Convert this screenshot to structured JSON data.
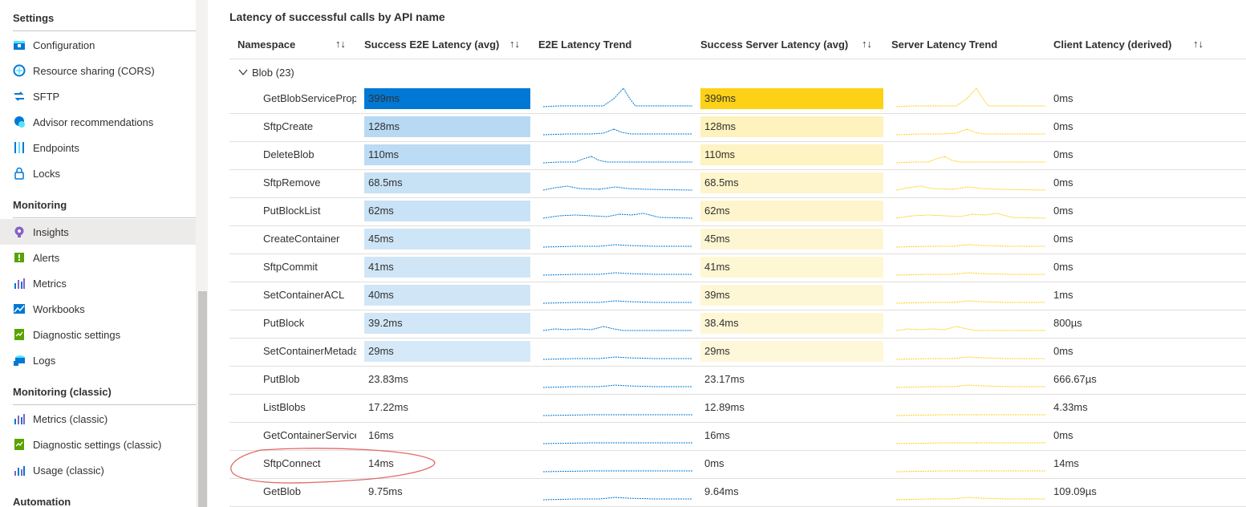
{
  "sidebar": {
    "sections": [
      {
        "title": "Settings",
        "items": [
          {
            "label": "Configuration",
            "icon": "configuration-icon"
          },
          {
            "label": "Resource sharing (CORS)",
            "icon": "cors-icon"
          },
          {
            "label": "SFTP",
            "icon": "sftp-icon"
          },
          {
            "label": "Advisor recommendations",
            "icon": "advisor-icon"
          },
          {
            "label": "Endpoints",
            "icon": "endpoints-icon"
          },
          {
            "label": "Locks",
            "icon": "lock-icon"
          }
        ]
      },
      {
        "title": "Monitoring",
        "items": [
          {
            "label": "Insights",
            "icon": "insights-icon",
            "selected": true
          },
          {
            "label": "Alerts",
            "icon": "alerts-icon"
          },
          {
            "label": "Metrics",
            "icon": "metrics-icon"
          },
          {
            "label": "Workbooks",
            "icon": "workbooks-icon"
          },
          {
            "label": "Diagnostic settings",
            "icon": "diagnostic-settings-icon"
          },
          {
            "label": "Logs",
            "icon": "logs-icon"
          }
        ]
      },
      {
        "title": "Monitoring (classic)",
        "items": [
          {
            "label": "Metrics (classic)",
            "icon": "metrics-icon"
          },
          {
            "label": "Diagnostic settings (classic)",
            "icon": "diagnostic-settings-icon"
          },
          {
            "label": "Usage (classic)",
            "icon": "usage-icon"
          }
        ]
      },
      {
        "title": "Automation",
        "items": []
      }
    ]
  },
  "grid": {
    "title": "Latency of successful calls by API name",
    "columns": {
      "namespace": "Namespace",
      "e2e_avg": "Success E2E Latency (avg)",
      "e2e_trend": "E2E Latency Trend",
      "server_avg": "Success Server Latency (avg)",
      "server_trend": "Server Latency Trend",
      "client": "Client Latency (derived)"
    },
    "sort_glyph": "↑↓",
    "group_label": "Blob (23)",
    "colors": {
      "e2e_bar": "#0078d4",
      "server_bar": "#fcd116",
      "e2e_spark": "#0078d4",
      "server_spark": "#fcd116",
      "annotation": "#e06666"
    },
    "rows": [
      {
        "name": "GetBlobServiceProperties",
        "e2e": "399ms",
        "e2e_value": 399,
        "server": "399ms",
        "server_value": 399,
        "client": "0ms",
        "spark": "peak_late"
      },
      {
        "name": "SftpCreate",
        "e2e": "128ms",
        "e2e_value": 128,
        "server": "128ms",
        "server_value": 128,
        "client": "0ms",
        "spark": "small_peak_late"
      },
      {
        "name": "DeleteBlob",
        "e2e": "110ms",
        "e2e_value": 110,
        "server": "110ms",
        "server_value": 110,
        "client": "0ms",
        "spark": "small_peak_mid"
      },
      {
        "name": "SftpRemove",
        "e2e": "68.5ms",
        "e2e_value": 68.5,
        "server": "68.5ms",
        "server_value": 68.5,
        "client": "0ms",
        "spark": "two_bumps"
      },
      {
        "name": "PutBlockList",
        "e2e": "62ms",
        "e2e_value": 62,
        "server": "62ms",
        "server_value": 62,
        "client": "0ms",
        "spark": "wavy"
      },
      {
        "name": "CreateContainer",
        "e2e": "45ms",
        "e2e_value": 45,
        "server": "45ms",
        "server_value": 45,
        "client": "0ms",
        "spark": "tiny_bump"
      },
      {
        "name": "SftpCommit",
        "e2e": "41ms",
        "e2e_value": 41,
        "server": "41ms",
        "server_value": 41,
        "client": "0ms",
        "spark": "tiny_bump"
      },
      {
        "name": "SetContainerACL",
        "e2e": "40ms",
        "e2e_value": 40,
        "server": "39ms",
        "server_value": 39,
        "client": "1ms",
        "spark": "tiny_bump"
      },
      {
        "name": "PutBlock",
        "e2e": "39.2ms",
        "e2e_value": 39.2,
        "server": "38.4ms",
        "server_value": 38.4,
        "client": "800µs",
        "spark": "jagged"
      },
      {
        "name": "SetContainerMetadata",
        "e2e": "29ms",
        "e2e_value": 29,
        "server": "29ms",
        "server_value": 29,
        "client": "0ms",
        "spark": "tiny_bump"
      },
      {
        "name": "PutBlob",
        "e2e": "23.83ms",
        "e2e_value": 23.83,
        "server": "23.17ms",
        "server_value": 23.17,
        "client": "666.67µs",
        "spark": "tiny_bump"
      },
      {
        "name": "ListBlobs",
        "e2e": "17.22ms",
        "e2e_value": 17.22,
        "server": "12.89ms",
        "server_value": 12.89,
        "client": "4.33ms",
        "spark": "flat"
      },
      {
        "name": "GetContainerServiceMetadata",
        "e2e": "16ms",
        "e2e_value": 16,
        "server": "16ms",
        "server_value": 16,
        "client": "0ms",
        "spark": "flat"
      },
      {
        "name": "SftpConnect",
        "e2e": "14ms",
        "e2e_value": 14,
        "server": "0ms",
        "server_value": 0,
        "client": "14ms",
        "spark": "flat"
      },
      {
        "name": "GetBlob",
        "e2e": "9.75ms",
        "e2e_value": 9.75,
        "server": "9.64ms",
        "server_value": 9.64,
        "client": "109.09µs",
        "spark": "tiny_bump"
      }
    ],
    "max_value": 399
  }
}
